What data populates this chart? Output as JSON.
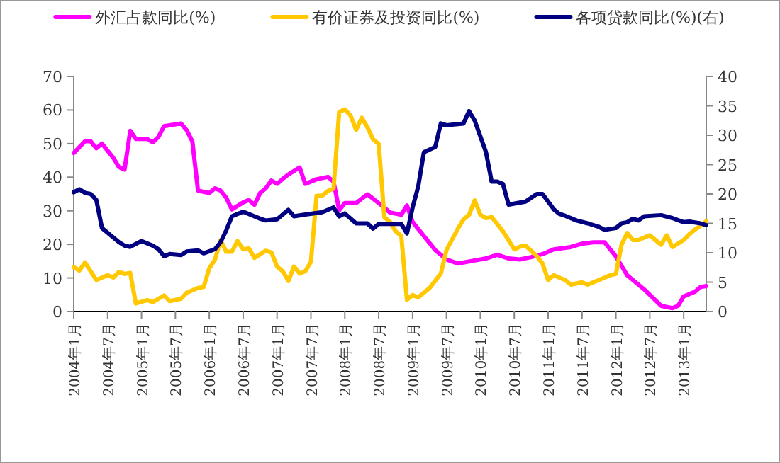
{
  "chart_data": {
    "type": "line",
    "xlim": [
      "2004-01",
      "2013-05"
    ],
    "ylim": [
      0,
      70
    ],
    "yticks": [
      0,
      10,
      20,
      30,
      40,
      50,
      60,
      70
    ],
    "y2lim": [
      0,
      40
    ],
    "y2ticks": [
      0,
      5,
      10,
      15,
      20,
      25,
      30,
      35,
      40
    ],
    "legend": "top",
    "xticks": [
      {
        "value": "2004-01",
        "label": "2004年1月"
      },
      {
        "value": "2004-07",
        "label": "2004年7月"
      },
      {
        "value": "2005-01",
        "label": "2005年1月"
      },
      {
        "value": "2005-07",
        "label": "2005年7月"
      },
      {
        "value": "2006-01",
        "label": "2006年1月"
      },
      {
        "value": "2006-07",
        "label": "2006年7月"
      },
      {
        "value": "2007-01",
        "label": "2007年1月"
      },
      {
        "value": "2007-07",
        "label": "2007年7月"
      },
      {
        "value": "2008-01",
        "label": "2008年1月"
      },
      {
        "value": "2008-07",
        "label": "2008年7月"
      },
      {
        "value": "2009-01",
        "label": "2009年1月"
      },
      {
        "value": "2009-07",
        "label": "2009年7月"
      },
      {
        "value": "2010-01",
        "label": "2010年1月"
      },
      {
        "value": "2010-07",
        "label": "2010年7月"
      },
      {
        "value": "2011-01",
        "label": "2011年1月"
      },
      {
        "value": "2011-07",
        "label": "2011年7月"
      },
      {
        "value": "2012-01",
        "label": "2012年1月"
      },
      {
        "value": "2012-07",
        "label": "2012年7月"
      },
      {
        "value": "2013-01",
        "label": "2013年1月"
      }
    ],
    "series": [
      {
        "name": "外汇占款同比(%)",
        "color": "#ff00ff",
        "x": [
          "2004-01",
          "2004-03",
          "2004-04",
          "2004-05",
          "2004-06",
          "2004-08",
          "2004-09",
          "2004-10",
          "2004-11",
          "2004-12",
          "2005-02",
          "2005-03",
          "2005-04",
          "2005-05",
          "2005-08",
          "2005-09",
          "2005-10",
          "2005-11",
          "2006-01",
          "2006-02",
          "2006-03",
          "2006-04",
          "2006-05",
          "2006-07",
          "2006-08",
          "2006-09",
          "2006-10",
          "2006-11",
          "2006-12",
          "2007-01",
          "2007-02",
          "2007-03",
          "2007-05",
          "2007-06",
          "2007-08",
          "2007-10",
          "2007-11",
          "2007-12",
          "2008-01",
          "2008-03",
          "2008-05",
          "2008-07",
          "2008-09",
          "2008-11",
          "2008-12",
          "2009-01",
          "2009-03",
          "2009-05",
          "2009-07",
          "2009-09",
          "2009-12",
          "2010-02",
          "2010-04",
          "2010-06",
          "2010-08",
          "2010-10",
          "2010-12",
          "2011-02",
          "2011-05",
          "2011-07",
          "2011-09",
          "2011-11",
          "2012-01",
          "2012-03",
          "2012-06",
          "2012-09",
          "2012-11",
          "2012-12",
          "2013-01",
          "2013-03",
          "2013-04",
          "2013-05"
        ],
        "values": [
          47.2,
          50.7,
          50.7,
          48.6,
          50,
          45.8,
          43,
          42.3,
          53.8,
          51.4,
          51.4,
          50.4,
          52,
          55.2,
          56,
          54,
          50.7,
          36,
          35.3,
          36.7,
          36,
          33.9,
          30.4,
          32.5,
          33.2,
          31.8,
          35.3,
          36.7,
          39,
          38,
          39.5,
          40.8,
          42.9,
          38,
          39.4,
          40.1,
          38.7,
          30.2,
          32.3,
          32.3,
          34.9,
          32.3,
          29.5,
          28.8,
          31.6,
          26.7,
          22.5,
          18.3,
          15.5,
          14.3,
          15.2,
          15.8,
          16.9,
          15.8,
          15.5,
          16.2,
          17.1,
          18.5,
          19.2,
          20.2,
          20.6,
          20.6,
          16.4,
          10.8,
          6.6,
          1.7,
          1,
          1.7,
          4.5,
          5.9,
          7.3,
          7.6
        ]
      },
      {
        "name": "有价证券及投资同比(%)",
        "color": "#ffc800",
        "x": [
          "2004-01",
          "2004-02",
          "2004-03",
          "2004-05",
          "2004-07",
          "2004-08",
          "2004-09",
          "2004-10",
          "2004-11",
          "2004-12",
          "2005-02",
          "2005-03",
          "2005-05",
          "2005-06",
          "2005-08",
          "2005-09",
          "2005-11",
          "2005-12",
          "2006-01",
          "2006-02",
          "2006-03",
          "2006-04",
          "2006-05",
          "2006-06",
          "2006-07",
          "2006-08",
          "2006-09",
          "2006-11",
          "2006-12",
          "2007-01",
          "2007-02",
          "2007-03",
          "2007-04",
          "2007-05",
          "2007-06",
          "2007-07",
          "2007-08",
          "2007-09",
          "2007-10",
          "2007-11",
          "2007-12",
          "2008-01",
          "2008-02",
          "2008-03",
          "2008-04",
          "2008-05",
          "2008-06",
          "2008-07",
          "2008-08",
          "2008-09",
          "2008-10",
          "2008-11",
          "2008-12",
          "2009-01",
          "2009-02",
          "2009-04",
          "2009-06",
          "2009-07",
          "2009-09",
          "2009-10",
          "2009-11",
          "2009-12",
          "2010-01",
          "2010-02",
          "2010-03",
          "2010-05",
          "2010-07",
          "2010-08",
          "2010-09",
          "2010-11",
          "2010-12",
          "2011-01",
          "2011-02",
          "2011-04",
          "2011-05",
          "2011-07",
          "2011-08",
          "2011-10",
          "2011-12",
          "2012-01",
          "2012-02",
          "2012-03",
          "2012-04",
          "2012-05",
          "2012-07",
          "2012-09",
          "2012-10",
          "2012-11",
          "2013-01",
          "2013-02",
          "2013-03",
          "2013-04",
          "2013-05"
        ],
        "values": [
          13.2,
          12.2,
          14.6,
          9.4,
          10.8,
          10.1,
          11.8,
          11.2,
          11.5,
          2.4,
          3.4,
          2.8,
          4.8,
          3.1,
          3.8,
          5.6,
          7,
          7.3,
          12.9,
          15.4,
          21.3,
          17.8,
          17.8,
          21,
          18.5,
          18.8,
          16,
          18.1,
          17.6,
          13.4,
          12,
          9.1,
          13.4,
          11.3,
          12,
          14.8,
          34.5,
          34.5,
          35.9,
          36.6,
          59.4,
          60.2,
          58.4,
          54.1,
          57.7,
          54.9,
          51.3,
          49.9,
          28.1,
          26.7,
          23.9,
          22.5,
          3.5,
          4.9,
          4.2,
          7,
          11.3,
          18.3,
          24.6,
          27.4,
          28.8,
          33.1,
          28.8,
          27.8,
          28.1,
          23.9,
          18.5,
          19.3,
          19.6,
          16.5,
          14.3,
          9.4,
          10.8,
          9.4,
          8,
          8.7,
          8,
          9.4,
          10.8,
          11.2,
          19.9,
          23.4,
          21.3,
          21.3,
          22.7,
          19.9,
          22.7,
          19.2,
          21.3,
          23,
          24.4,
          25.5,
          26.9
        ]
      },
      {
        "name": "各项贷款同比(%)(右)",
        "color": "#000080",
        "axis": "y2",
        "x": [
          "2004-01",
          "2004-02",
          "2004-03",
          "2004-04",
          "2004-05",
          "2004-06",
          "2004-07",
          "2004-09",
          "2004-10",
          "2004-11",
          "2005-01",
          "2005-03",
          "2005-04",
          "2005-05",
          "2005-06",
          "2005-08",
          "2005-09",
          "2005-11",
          "2005-12",
          "2006-02",
          "2006-03",
          "2006-04",
          "2006-05",
          "2006-07",
          "2006-08",
          "2006-10",
          "2006-11",
          "2007-01",
          "2007-03",
          "2007-04",
          "2007-06",
          "2007-09",
          "2007-11",
          "2007-12",
          "2008-01",
          "2008-03",
          "2008-05",
          "2008-06",
          "2008-07",
          "2008-11",
          "2008-12",
          "2009-01",
          "2009-02",
          "2009-03",
          "2009-05",
          "2009-06",
          "2009-07",
          "2009-10",
          "2009-11",
          "2009-12",
          "2010-02",
          "2010-03",
          "2010-04",
          "2010-05",
          "2010-06",
          "2010-09",
          "2010-11",
          "2010-12",
          "2011-02",
          "2011-03",
          "2011-04",
          "2011-06",
          "2011-08",
          "2011-10",
          "2011-11",
          "2012-01",
          "2012-02",
          "2012-03",
          "2012-04",
          "2012-05",
          "2012-06",
          "2012-09",
          "2012-11",
          "2013-01",
          "2013-02",
          "2013-04",
          "2013-05"
        ],
        "values": [
          20.3,
          20.8,
          20.2,
          20,
          19,
          14.2,
          13.4,
          11.8,
          11.2,
          11,
          12,
          11.2,
          10.6,
          9.4,
          9.8,
          9.6,
          10.2,
          10.4,
          9.9,
          10.6,
          11.8,
          13.8,
          16.2,
          17,
          16.6,
          15.8,
          15.5,
          15.7,
          17.3,
          16.2,
          16.5,
          16.9,
          17.7,
          16.2,
          16.7,
          15,
          15,
          14.1,
          14.9,
          14.9,
          13.3,
          17.7,
          21.3,
          27.1,
          28,
          32,
          31.7,
          32,
          34.1,
          32.5,
          27.1,
          22.1,
          22.1,
          21.7,
          18.2,
          18.7,
          20,
          20,
          17.4,
          16.6,
          16.3,
          15.5,
          15,
          14.4,
          13.9,
          14.2,
          15,
          15.2,
          15.8,
          15.5,
          16.2,
          16.4,
          15.9,
          15.2,
          15.3,
          15,
          14.7
        ]
      }
    ]
  }
}
